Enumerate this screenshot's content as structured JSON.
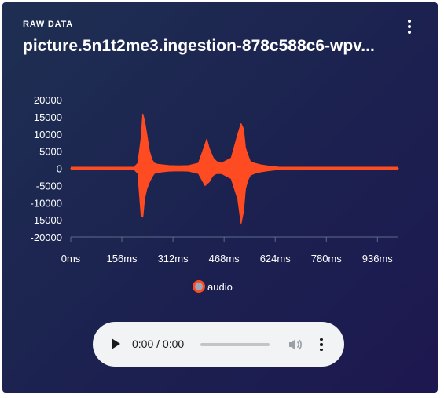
{
  "panel": {
    "section_label": "RAW DATA",
    "title": "picture.5n1t2me3.ingestion-878c588c6-wpv...",
    "menu_icon": "more-vert-icon"
  },
  "chart_data": {
    "type": "line",
    "title": "",
    "xlabel": "",
    "ylabel": "",
    "x_ticks": [
      "0ms",
      "156ms",
      "312ms",
      "468ms",
      "624ms",
      "780ms",
      "936ms"
    ],
    "y_ticks": [
      "20000",
      "15000",
      "10000",
      "5000",
      "0",
      "-5000",
      "-10000",
      "-15000",
      "-20000"
    ],
    "xlim": [
      0,
      1000
    ],
    "ylim": [
      -20000,
      20000
    ],
    "grid": false,
    "legend": "bottom",
    "series": [
      {
        "name": "audio",
        "color": "#ff4b22",
        "x": [
          0,
          190,
          205,
          215,
          220,
          225,
          232,
          240,
          248,
          255,
          265,
          280,
          300,
          330,
          360,
          390,
          410,
          415,
          422,
          428,
          435,
          445,
          460,
          490,
          510,
          520,
          527,
          533,
          540,
          548,
          560,
          580,
          600,
          620,
          640,
          700,
          1000
        ],
        "max": [
          0,
          0,
          1500,
          9000,
          15800,
          14000,
          10000,
          5000,
          2500,
          1500,
          1200,
          1000,
          800,
          700,
          800,
          1500,
          7000,
          8500,
          6000,
          4500,
          3000,
          2000,
          1500,
          3000,
          10000,
          13000,
          11500,
          6000,
          4000,
          2000,
          1500,
          1000,
          700,
          500,
          300,
          0,
          0
        ],
        "min": [
          0,
          0,
          -1500,
          -14000,
          -14200,
          -9000,
          -6000,
          -4000,
          -2500,
          -1500,
          -1200,
          -1000,
          -800,
          -700,
          -800,
          -1500,
          -5000,
          -4500,
          -4000,
          -3000,
          -2000,
          -1500,
          -1500,
          -3000,
          -9000,
          -16000,
          -12500,
          -6000,
          -3500,
          -2000,
          -1500,
          -1000,
          -700,
          -500,
          -300,
          0,
          0
        ]
      }
    ]
  },
  "player": {
    "time": "0:00 / 0:00",
    "progress": 0,
    "play_icon": "play-icon",
    "volume_icon": "volume-icon",
    "more_icon": "more-vert-icon"
  }
}
